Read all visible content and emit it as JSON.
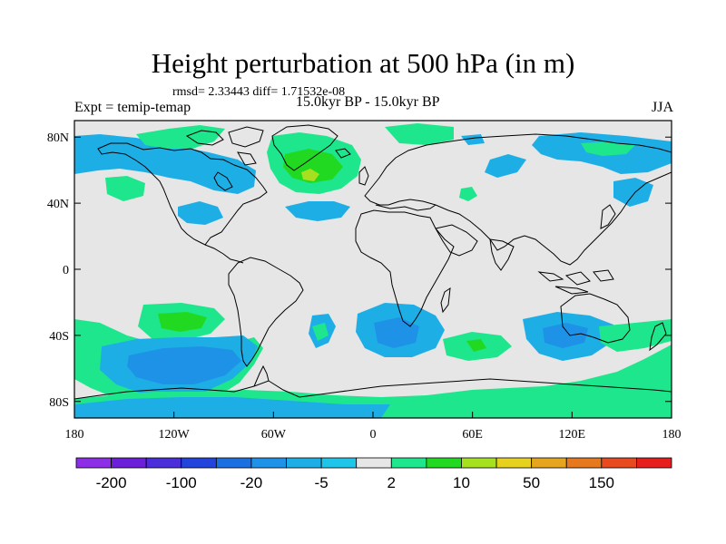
{
  "title": "Height perturbation at 500 hPa (in m)",
  "stats": "rmsd= 2.33443 diff= 1.71532e-08",
  "experiment": "Expt = temip-temap",
  "period": "15.0kyr BP - 15.0kyr BP",
  "season": "JJA",
  "map": {
    "lon_range": [
      -180,
      180
    ],
    "lat_range": [
      -90,
      90
    ],
    "lat_ticks": [
      {
        "value": 80,
        "label": "80N"
      },
      {
        "value": 40,
        "label": "40N"
      },
      {
        "value": 0,
        "label": "0"
      },
      {
        "value": -40,
        "label": "40S"
      },
      {
        "value": -80,
        "label": "80S"
      }
    ],
    "lon_ticks": [
      {
        "value": -180,
        "label": "180"
      },
      {
        "value": -120,
        "label": "120W"
      },
      {
        "value": -60,
        "label": "60W"
      },
      {
        "value": 0,
        "label": "0"
      },
      {
        "value": 60,
        "label": "60E"
      },
      {
        "value": 120,
        "label": "120E"
      },
      {
        "value": 180,
        "label": "180"
      }
    ],
    "background_color": "#e6e6e6",
    "coastline_color": "#000000"
  },
  "colorbar": {
    "colors": [
      "#8c2ee6",
      "#6b1fd9",
      "#4a2ed9",
      "#2244dd",
      "#1c6fe0",
      "#1e92e6",
      "#1eaee6",
      "#1ec5e8",
      "#e6e6e6",
      "#1ee68c",
      "#22d922",
      "#a6e01e",
      "#e6d21e",
      "#e6a51e",
      "#e6781e",
      "#e64a1e",
      "#e61e1e"
    ],
    "labels": [
      {
        "text": "-200",
        "boundary": 1
      },
      {
        "text": "-100",
        "boundary": 3
      },
      {
        "text": "-20",
        "boundary": 5
      },
      {
        "text": "-5",
        "boundary": 7
      },
      {
        "text": "2",
        "boundary": 9
      },
      {
        "text": "10",
        "boundary": 11
      },
      {
        "text": "50",
        "boundary": 13
      },
      {
        "text": "150",
        "boundary": 15
      }
    ]
  },
  "contour_colors": {
    "negative": "#1eaee6",
    "weak_negative": "#1ec5e8",
    "strong_negative": "#1e92e6",
    "positive": "#1ee68c",
    "strong_positive": "#22d922",
    "peak_positive": "#a6e01e"
  }
}
